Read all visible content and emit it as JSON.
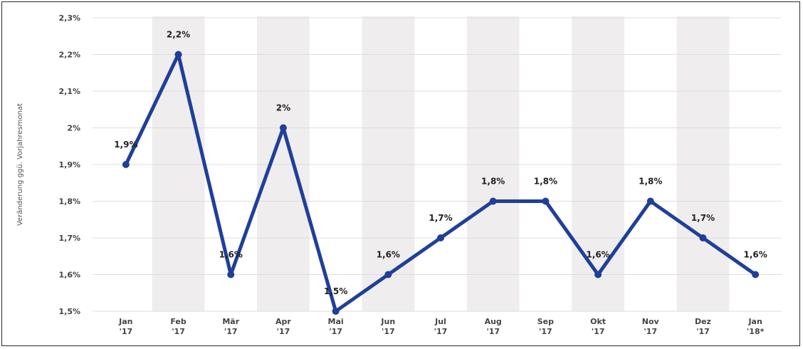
{
  "chart_data": {
    "type": "line",
    "ylabel": "Veränderung ggü. Vorjahresmonat",
    "categories": [
      [
        "Jan",
        "'17"
      ],
      [
        "Feb",
        "'17"
      ],
      [
        "Mär",
        "'17"
      ],
      [
        "Apr",
        "'17"
      ],
      [
        "Mai",
        "'17"
      ],
      [
        "Jun",
        "'17"
      ],
      [
        "Jul",
        "'17"
      ],
      [
        "Aug",
        "'17"
      ],
      [
        "Sep",
        "'17"
      ],
      [
        "Okt",
        "'17"
      ],
      [
        "Nov",
        "'17"
      ],
      [
        "Dez",
        "'17"
      ],
      [
        "Jan",
        "'18*"
      ]
    ],
    "values": [
      1.9,
      2.2,
      1.6,
      2.0,
      1.5,
      1.6,
      1.7,
      1.8,
      1.8,
      1.6,
      1.8,
      1.7,
      1.6
    ],
    "data_labels": [
      "1,9%",
      "2,2%",
      "1,6%",
      "2%",
      "1,5%",
      "1,6%",
      "1,7%",
      "1,8%",
      "1,8%",
      "1,6%",
      "1,8%",
      "1,7%",
      "1,6%"
    ],
    "y_ticks": [
      1.5,
      1.6,
      1.7,
      1.8,
      1.9,
      2.0,
      2.1,
      2.2,
      2.3
    ],
    "y_tick_labels": [
      "1,5%",
      "1,6%",
      "1,7%",
      "1,8%",
      "1,9%",
      "2%",
      "2,1%",
      "2,2%",
      "2,3%"
    ],
    "ylim": [
      1.5,
      2.3
    ],
    "grid": true,
    "alternating_bands": true,
    "colors": {
      "line": "#1f3f99",
      "band": "#efedee",
      "grid": "#dddddd"
    }
  }
}
